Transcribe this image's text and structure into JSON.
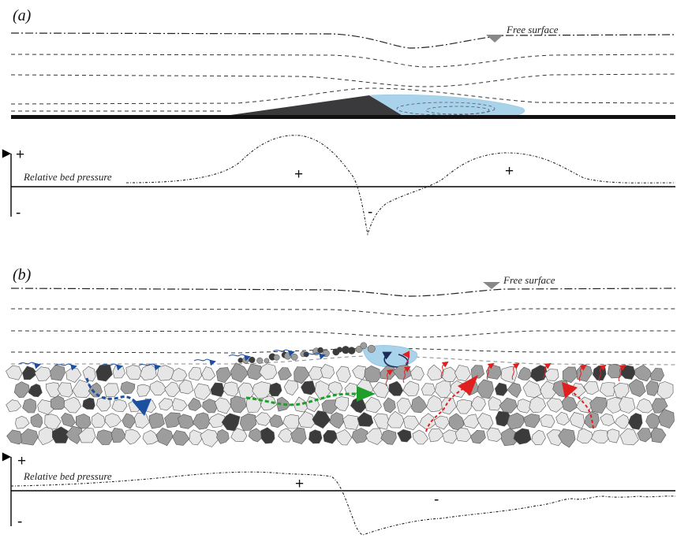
{
  "panel_a": {
    "label": "(a)",
    "free_surface_label": "Free surface",
    "pressure_label": "Relative bed pressure",
    "axis_plus": "+",
    "axis_minus": "-",
    "zone_plus_1": "+",
    "zone_minus": "-",
    "zone_plus_2": "+",
    "colors": {
      "dune": "#3a3a3c",
      "separation_zone": "#a9d3ea",
      "bed": "#111111"
    }
  },
  "panel_b": {
    "label": "(b)",
    "free_surface_label": "Free surface",
    "pressure_label": "Relative bed pressure",
    "axis_plus": "+",
    "axis_minus": "-",
    "zone_plus": "+",
    "zone_minus": "-",
    "colors": {
      "infiltration_flow": "#1c4fa0",
      "subsurface_flow": "#1f9e2c",
      "exfiltration_flow": "#e01f1f",
      "vortex_zone": "#a9d3ea",
      "grain_dark": "#3b3b3b",
      "grain_mid": "#9d9d9d",
      "grain_light": "#e6e6e6"
    }
  }
}
